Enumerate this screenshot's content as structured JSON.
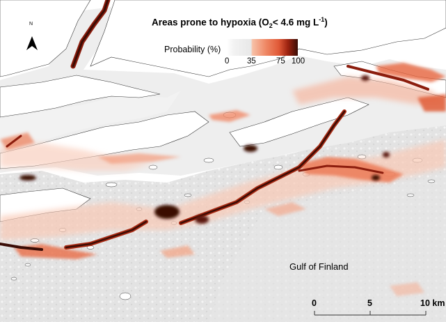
{
  "map": {
    "title_main": "Areas prone to hypoxia (O",
    "title_sub": "2",
    "title_rest": "< 4.6 mg L",
    "title_sup": "-1",
    "title_end": ")",
    "legend": {
      "label": "Probability (%)",
      "ticks": [
        "0",
        "35",
        "75",
        "100"
      ],
      "colors": {
        "low": "#ffffff",
        "mid_low": "#e8e8e8",
        "mid": "#ef8865",
        "high": "#e15a38",
        "max": "#3a0c05"
      }
    },
    "place_label": "Gulf of Finland",
    "north_arrow": {
      "letter": "N",
      "icon": "north-arrow-icon"
    },
    "scale_bar": {
      "labels": [
        "0",
        "5",
        "10 km"
      ]
    },
    "colors": {
      "sea": "#e0e0e0",
      "land": "#ffffff",
      "coastline": "#333333"
    }
  }
}
